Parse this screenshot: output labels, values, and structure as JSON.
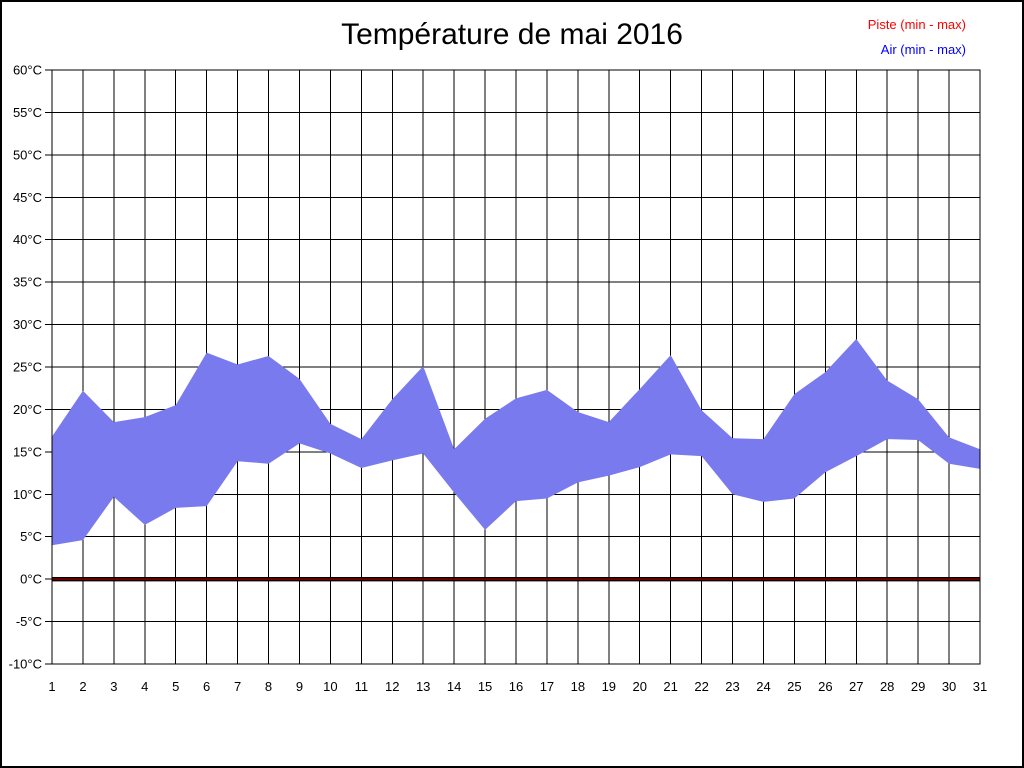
{
  "page": {
    "background": "#ffffff",
    "border_color": "#000000"
  },
  "chart_data": {
    "type": "area",
    "title": "Température de mai 2016",
    "x": [
      1,
      2,
      3,
      4,
      5,
      6,
      7,
      8,
      9,
      10,
      11,
      12,
      13,
      14,
      15,
      16,
      17,
      18,
      19,
      20,
      21,
      22,
      23,
      24,
      25,
      26,
      27,
      28,
      29,
      30,
      31
    ],
    "ylim": [
      -10,
      60
    ],
    "ytick_step": 5,
    "y_unit": "°C",
    "grid": true,
    "grid_color": "#000000",
    "legend_position": "top-right",
    "series": [
      {
        "name": "Piste (min - max)",
        "kind": "flat-line",
        "legend_color": "#ff0000",
        "line_color": "#6f0000",
        "line_edge_color": "#000000",
        "value": 0
      },
      {
        "name": "Air (min - max)",
        "kind": "band",
        "legend_color": "#0000ff",
        "fill_color": "#787aee",
        "min": [
          4.0,
          4.6,
          9.7,
          6.4,
          8.4,
          8.6,
          13.9,
          13.6,
          16.0,
          14.8,
          13.1,
          14.0,
          14.8,
          10.2,
          5.8,
          9.2,
          9.5,
          11.4,
          12.2,
          13.2,
          14.7,
          14.5,
          10.0,
          9.1,
          9.5,
          12.6,
          14.5,
          16.5,
          16.4,
          13.6,
          13.0
        ],
        "max": [
          16.8,
          22.2,
          18.5,
          19.1,
          20.5,
          26.7,
          25.3,
          26.3,
          23.6,
          18.3,
          16.5,
          21.2,
          25.1,
          15.3,
          18.9,
          21.3,
          22.3,
          19.7,
          18.5,
          22.4,
          26.4,
          19.9,
          16.6,
          16.5,
          21.8,
          24.4,
          28.3,
          23.4,
          21.2,
          16.7,
          15.3
        ]
      }
    ]
  }
}
